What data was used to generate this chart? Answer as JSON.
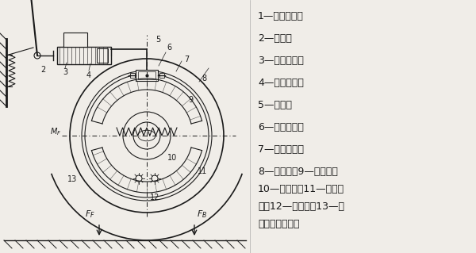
{
  "bg_color": "#f0ede8",
  "line_color": "#1a1a1a",
  "fig_w": 6.0,
  "fig_h": 3.19,
  "dpi": 100,
  "legend_lines": [
    "1—制动踏板；",
    "2—推杆；",
    "3—主缸活塞；",
    "4—制动主缸；",
    "5—油管；",
    "6—制动轮缸；",
    "7—轮缸活塞；",
    "8—制动鼓；9—摩擦片；",
    "10—制动蹄；11—制动底",
    "板；12—支承销；13—制",
    "动蹄回位弹簧。"
  ]
}
